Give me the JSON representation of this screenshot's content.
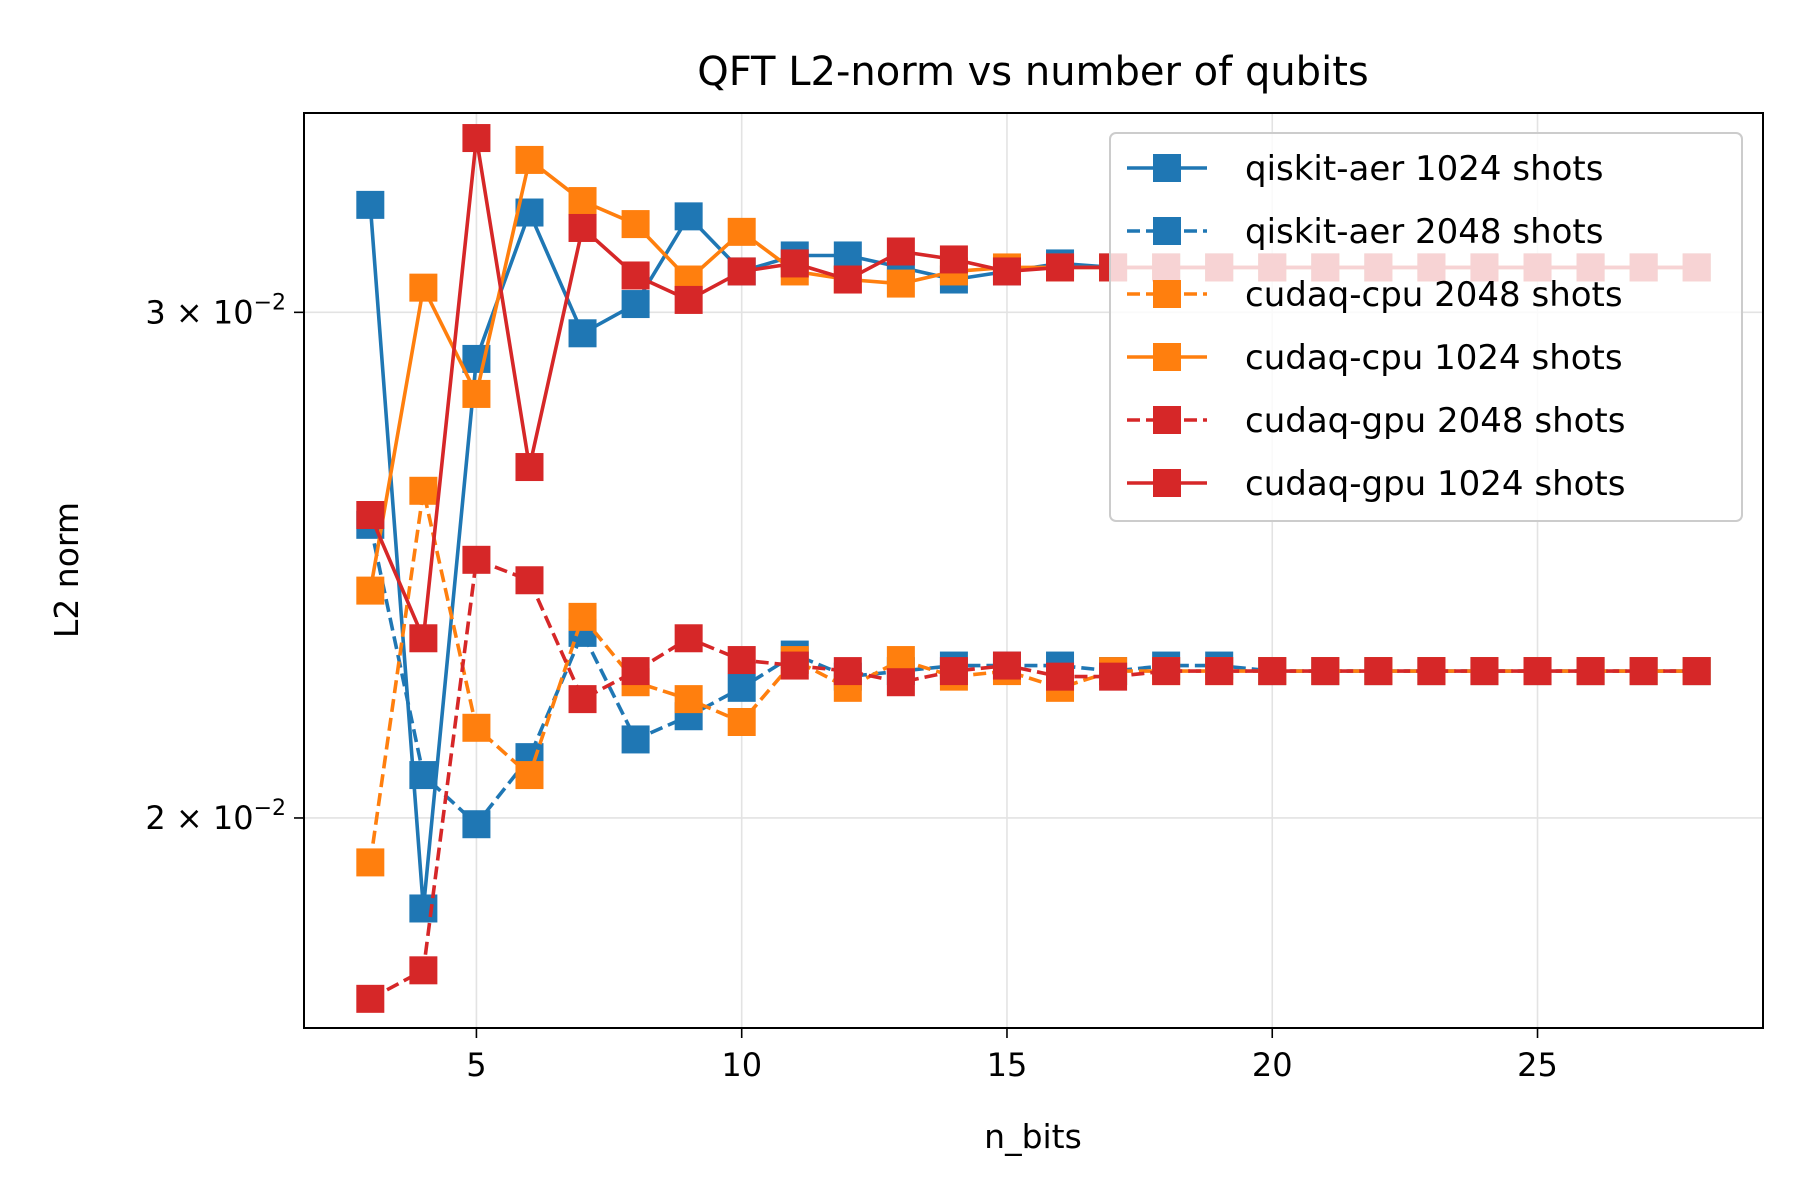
{
  "chart_data": {
    "type": "line",
    "title": "QFT  L2-norm vs number of qubits",
    "xlabel": "n_bits",
    "ylabel": "L2 norm",
    "xlim": [
      1.75,
      29.25
    ],
    "ylim": [
      0.0169,
      0.0352
    ],
    "yscale": "log",
    "grid": true,
    "legend_position": "upper right",
    "x_ticks": [
      {
        "value": 5,
        "label": "5"
      },
      {
        "value": 10,
        "label": "10"
      },
      {
        "value": 15,
        "label": "15"
      },
      {
        "value": 20,
        "label": "20"
      },
      {
        "value": 25,
        "label": "25"
      }
    ],
    "y_ticks": [
      {
        "value": 0.02,
        "mantissa": "2",
        "exponent": "−2"
      },
      {
        "value": 0.03,
        "mantissa": "3",
        "exponent": "−2"
      }
    ],
    "x": [
      3,
      4,
      5,
      6,
      7,
      8,
      9,
      10,
      11,
      12,
      13,
      14,
      15,
      16,
      17,
      18,
      19,
      20,
      21,
      22,
      23,
      24,
      25,
      26,
      27,
      28
    ],
    "series": [
      {
        "name": "qiskit-aer  1024 shots",
        "color": "#1f77b4",
        "dash": "solid",
        "values": [
          0.0327,
          0.0186,
          0.0289,
          0.0325,
          0.0295,
          0.0302,
          0.0324,
          0.031,
          0.0314,
          0.0314,
          0.0311,
          0.0308,
          0.031,
          0.0312,
          0.0311,
          0.0311,
          0.0311,
          0.0311,
          0.0311,
          0.0311,
          0.0311,
          0.0311,
          0.0311,
          0.0311,
          0.0311,
          0.0311
        ]
      },
      {
        "name": "qiskit-aer  2048 shots",
        "color": "#1f77b4",
        "dash": "dashed",
        "values": [
          0.0253,
          0.0207,
          0.0199,
          0.021,
          0.0232,
          0.0213,
          0.0217,
          0.0222,
          0.0228,
          0.0224,
          0.0225,
          0.0226,
          0.0226,
          0.0226,
          0.0225,
          0.0226,
          0.0226,
          0.0225,
          0.0225,
          0.0225,
          0.0225,
          0.0225,
          0.0225,
          0.0225,
          0.0225,
          0.0225
        ]
      },
      {
        "name": "cudaq-cpu  2048 shots",
        "color": "#ff7f0e",
        "dash": "dashed",
        "values": [
          0.0193,
          0.026,
          0.0215,
          0.0207,
          0.0235,
          0.0223,
          0.022,
          0.0216,
          0.0227,
          0.0222,
          0.0227,
          0.0224,
          0.0225,
          0.0222,
          0.0225,
          0.0225,
          0.0225,
          0.0225,
          0.0225,
          0.0225,
          0.0225,
          0.0225,
          0.0225,
          0.0225,
          0.0225,
          0.0225
        ]
      },
      {
        "name": "cudaq-cpu  1024 shots",
        "color": "#ff7f0e",
        "dash": "solid",
        "values": [
          0.024,
          0.0306,
          0.0281,
          0.0339,
          0.0328,
          0.0322,
          0.0308,
          0.032,
          0.031,
          0.0308,
          0.0307,
          0.031,
          0.0311,
          0.0311,
          0.0311,
          0.0311,
          0.0311,
          0.0311,
          0.0311,
          0.0311,
          0.0311,
          0.0311,
          0.0311,
          0.0311,
          0.0311,
          0.0311
        ]
      },
      {
        "name": "cudaq-gpu  2048 shots",
        "color": "#d62728",
        "dash": "dashed",
        "values": [
          0.0173,
          0.0177,
          0.0246,
          0.0242,
          0.022,
          0.0225,
          0.0231,
          0.0227,
          0.0226,
          0.0225,
          0.0223,
          0.0225,
          0.0226,
          0.0224,
          0.0224,
          0.0225,
          0.0225,
          0.0225,
          0.0225,
          0.0225,
          0.0225,
          0.0225,
          0.0225,
          0.0225,
          0.0225,
          0.0225
        ]
      },
      {
        "name": "cudaq-gpu  1024 shots",
        "color": "#d62728",
        "dash": "solid",
        "values": [
          0.0255,
          0.0231,
          0.0345,
          0.0265,
          0.0321,
          0.0309,
          0.0303,
          0.031,
          0.0312,
          0.0308,
          0.0315,
          0.0313,
          0.031,
          0.0311,
          0.0311,
          0.0311,
          0.0311,
          0.0311,
          0.0311,
          0.0311,
          0.0311,
          0.0311,
          0.0311,
          0.0311,
          0.0311,
          0.0311
        ]
      }
    ]
  }
}
